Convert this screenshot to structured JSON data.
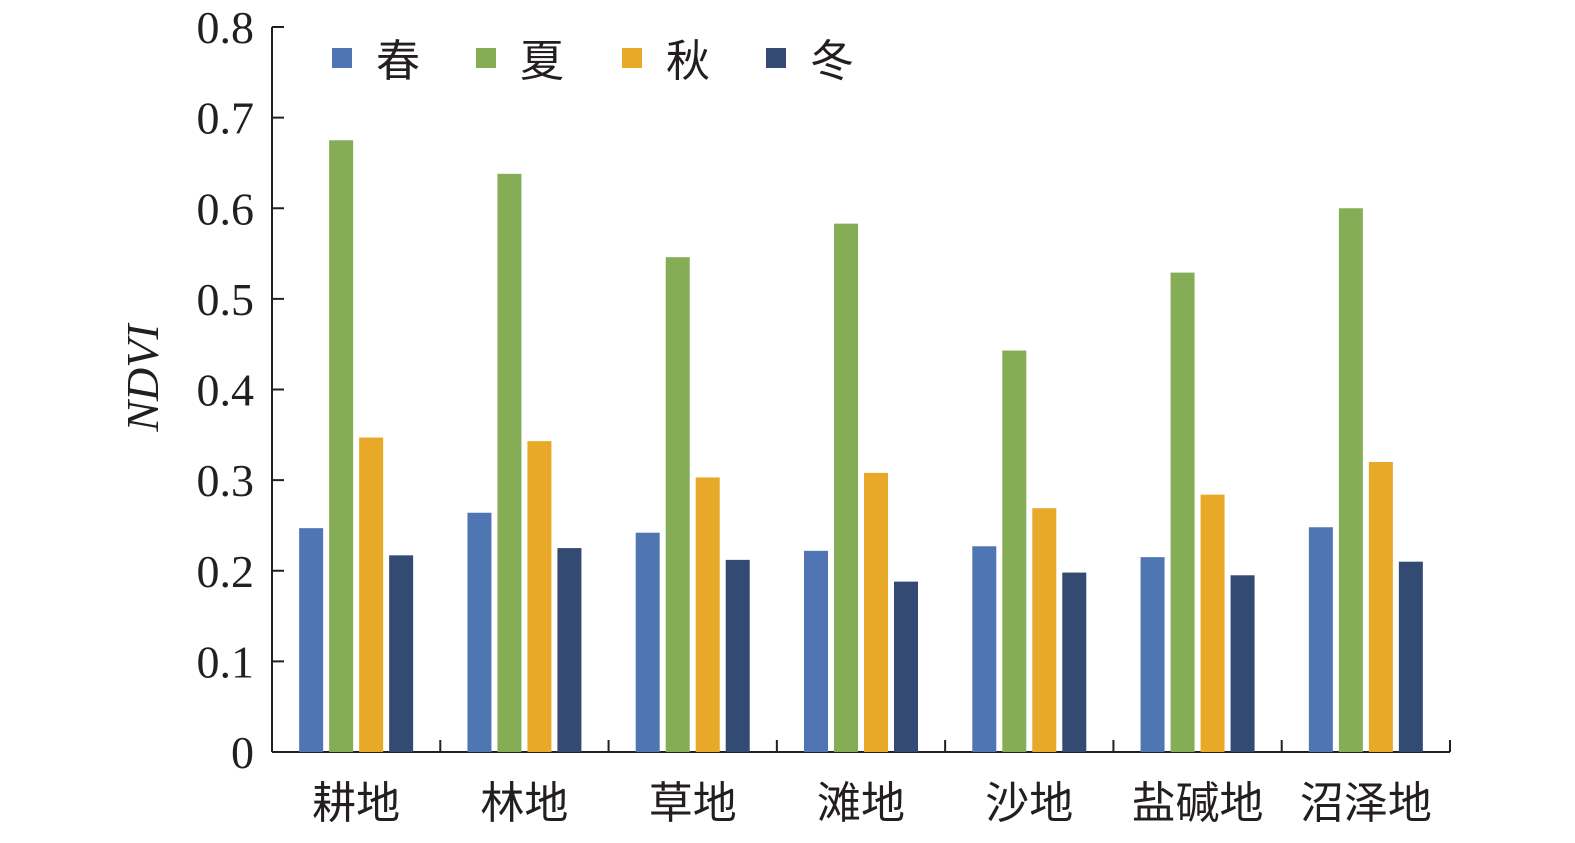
{
  "chart_data": {
    "type": "bar",
    "title": "",
    "xlabel": "",
    "ylabel": "NDVI",
    "ylim": [
      0,
      0.8
    ],
    "yticks": [
      "0",
      "0.1",
      "0.2",
      "0.3",
      "0.4",
      "0.5",
      "0.6",
      "0.7",
      "0.8"
    ],
    "categories": [
      "耕地",
      "林地",
      "草地",
      "滩地",
      "沙地",
      "盐碱地",
      "沼泽地"
    ],
    "series": [
      {
        "name": "春",
        "color": "#4f76b3",
        "values": [
          0.247,
          0.264,
          0.242,
          0.222,
          0.227,
          0.215,
          0.248
        ]
      },
      {
        "name": "夏",
        "color": "#84ad55",
        "values": [
          0.675,
          0.638,
          0.546,
          0.583,
          0.443,
          0.529,
          0.6
        ]
      },
      {
        "name": "秋",
        "color": "#e8a828",
        "values": [
          0.347,
          0.343,
          0.303,
          0.308,
          0.269,
          0.284,
          0.32
        ]
      },
      {
        "name": "冬",
        "color": "#334a73",
        "values": [
          0.217,
          0.225,
          0.212,
          0.188,
          0.198,
          0.195,
          0.21
        ]
      }
    ],
    "legend_position": "top-left",
    "grid": false
  }
}
